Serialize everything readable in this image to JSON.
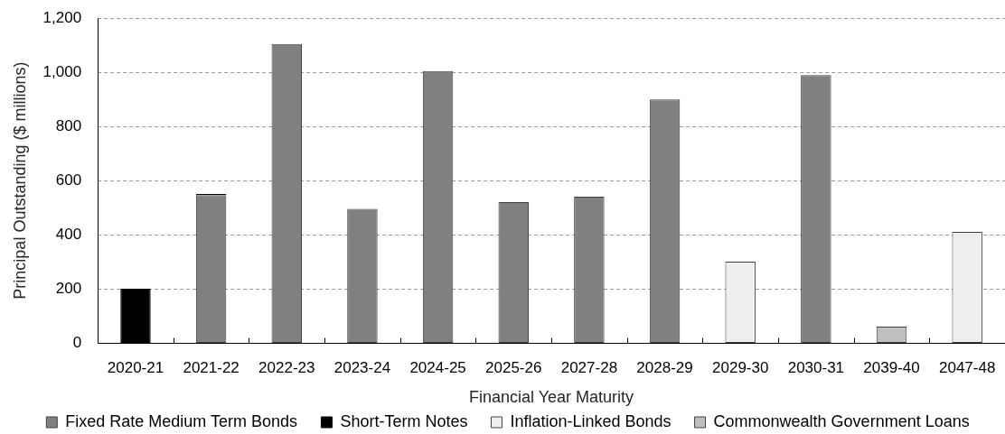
{
  "chart_data": {
    "type": "bar",
    "stacked": true,
    "xlabel": "Financial Year Maturity",
    "ylabel": "Principal Outstanding ($ millions)",
    "categories": [
      "2020-21",
      "2021-22",
      "2022-23",
      "2023-24",
      "2024-25",
      "2025-26",
      "2027-28",
      "2028-29",
      "2029-30",
      "2030-31",
      "2039-40",
      "2047-48"
    ],
    "series": [
      {
        "name": "Fixed Rate Medium Term Bonds",
        "color": "#808080",
        "values": [
          null,
          545,
          1105,
          495,
          1005,
          520,
          540,
          900,
          null,
          990,
          null,
          null
        ]
      },
      {
        "name": "Short-Term Notes",
        "color": "#000000",
        "values": [
          200,
          5,
          null,
          null,
          null,
          null,
          null,
          null,
          null,
          null,
          null,
          null
        ]
      },
      {
        "name": "Inflation-Linked Bonds",
        "color": "#eeeeee",
        "values": [
          null,
          null,
          null,
          null,
          null,
          null,
          null,
          null,
          300,
          null,
          null,
          410
        ]
      },
      {
        "name": "Commonwealth Government Loans",
        "color": "#bfbfbf",
        "values": [
          null,
          null,
          null,
          null,
          null,
          null,
          null,
          null,
          null,
          null,
          60,
          null
        ]
      }
    ],
    "ylim": [
      0,
      1200
    ],
    "yticks": [
      0,
      200,
      400,
      600,
      800,
      {
        "value": 1000,
        "label": "1,000"
      },
      {
        "value": 1200,
        "label": "1,200"
      }
    ],
    "grid": "y",
    "legend": "bottom"
  }
}
